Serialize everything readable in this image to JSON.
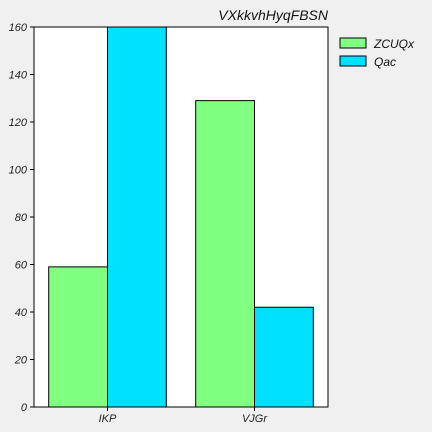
{
  "chart_data": {
    "type": "bar",
    "title": "VXkkvhHyqFBSN",
    "xlabel": "",
    "ylabel": "",
    "categories": [
      "IKP",
      "VJGr"
    ],
    "series": [
      {
        "name": "ZCUQx",
        "values": [
          59,
          129
        ],
        "color": "#80ff80"
      },
      {
        "name": "Qac",
        "values": [
          160,
          42
        ],
        "color": "#00e0ff"
      }
    ],
    "ylim": [
      0,
      160
    ],
    "yticks": [
      0,
      20,
      40,
      60,
      80,
      100,
      120,
      140,
      160
    ],
    "grid": false,
    "legend_position": "right"
  }
}
